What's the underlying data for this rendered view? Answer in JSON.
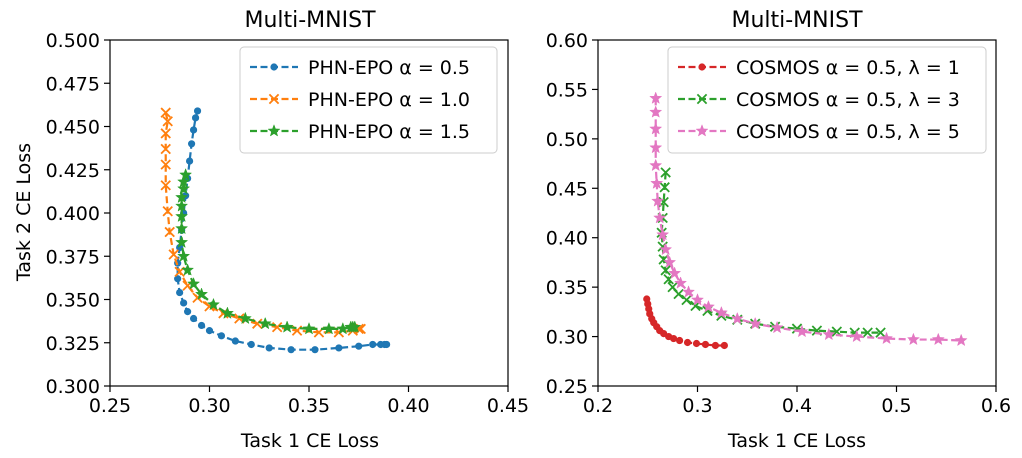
{
  "chart_data": [
    {
      "type": "line",
      "title": "Multi-MNIST",
      "xlabel": "Task 1 CE Loss",
      "ylabel": "Task 2 CE Loss",
      "xlim": [
        0.25,
        0.45
      ],
      "ylim": [
        0.3,
        0.5
      ],
      "xticks": [
        "0.25",
        "0.30",
        "0.35",
        "0.40",
        "0.45"
      ],
      "yticks": [
        "0.300",
        "0.325",
        "0.350",
        "0.375",
        "0.400",
        "0.425",
        "0.450",
        "0.475",
        "0.500"
      ],
      "grid": false,
      "legend_position": "top-right",
      "series": [
        {
          "name": "PHN-EPO α = 0.5",
          "color": "#1f77b4",
          "marker": "dot",
          "x": [
            0.294,
            0.293,
            0.292,
            0.291,
            0.29,
            0.289,
            0.288,
            0.287,
            0.286,
            0.285,
            0.284,
            0.284,
            0.285,
            0.287,
            0.289,
            0.292,
            0.296,
            0.3,
            0.306,
            0.313,
            0.321,
            0.33,
            0.341,
            0.353,
            0.365,
            0.375,
            0.382,
            0.386,
            0.388,
            0.389
          ],
          "y": [
            0.459,
            0.455,
            0.448,
            0.44,
            0.43,
            0.42,
            0.41,
            0.4,
            0.39,
            0.38,
            0.371,
            0.362,
            0.354,
            0.348,
            0.343,
            0.339,
            0.335,
            0.332,
            0.329,
            0.326,
            0.324,
            0.322,
            0.321,
            0.321,
            0.322,
            0.323,
            0.324,
            0.324,
            0.324,
            0.324
          ]
        },
        {
          "name": "PHN-EPO α = 1.0",
          "color": "#ff7f0e",
          "marker": "x",
          "x": [
            0.278,
            0.279,
            0.278,
            0.278,
            0.278,
            0.278,
            0.279,
            0.28,
            0.282,
            0.285,
            0.289,
            0.294,
            0.3,
            0.307,
            0.315,
            0.324,
            0.334,
            0.344,
            0.355,
            0.365,
            0.372,
            0.375,
            0.376
          ],
          "y": [
            0.458,
            0.453,
            0.446,
            0.437,
            0.428,
            0.416,
            0.401,
            0.389,
            0.376,
            0.366,
            0.358,
            0.351,
            0.346,
            0.342,
            0.339,
            0.336,
            0.334,
            0.332,
            0.331,
            0.331,
            0.332,
            0.333,
            0.333
          ]
        },
        {
          "name": "PHN-EPO α = 1.5",
          "color": "#2ca02c",
          "marker": "star",
          "x": [
            0.288,
            0.287,
            0.287,
            0.286,
            0.286,
            0.286,
            0.286,
            0.286,
            0.287,
            0.289,
            0.292,
            0.296,
            0.302,
            0.309,
            0.318,
            0.328,
            0.339,
            0.35,
            0.36,
            0.367,
            0.371,
            0.372,
            0.373
          ],
          "y": [
            0.422,
            0.418,
            0.414,
            0.409,
            0.404,
            0.398,
            0.391,
            0.383,
            0.375,
            0.367,
            0.359,
            0.353,
            0.347,
            0.342,
            0.339,
            0.336,
            0.334,
            0.333,
            0.333,
            0.333,
            0.334,
            0.334,
            0.334
          ]
        }
      ]
    },
    {
      "type": "line",
      "title": "Multi-MNIST",
      "xlabel": "Task 1 CE Loss",
      "ylabel": "",
      "xlim": [
        0.2,
        0.6
      ],
      "ylim": [
        0.25,
        0.6
      ],
      "xticks": [
        "0.2",
        "0.3",
        "0.4",
        "0.5",
        "0.6"
      ],
      "yticks": [
        "0.25",
        "0.30",
        "0.35",
        "0.40",
        "0.45",
        "0.50",
        "0.55",
        "0.60"
      ],
      "grid": false,
      "legend_position": "top-right",
      "series": [
        {
          "name": "COSMOS α = 0.5, λ = 1",
          "color": "#d62728",
          "marker": "dot",
          "x": [
            0.249,
            0.25,
            0.251,
            0.252,
            0.254,
            0.256,
            0.259,
            0.262,
            0.266,
            0.271,
            0.276,
            0.282,
            0.29,
            0.299,
            0.308,
            0.318,
            0.327
          ],
          "y": [
            0.338,
            0.333,
            0.328,
            0.323,
            0.318,
            0.314,
            0.31,
            0.306,
            0.303,
            0.3,
            0.298,
            0.296,
            0.294,
            0.293,
            0.292,
            0.291,
            0.291
          ]
        },
        {
          "name": "COSMOS α = 0.5, λ = 3",
          "color": "#2ca02c",
          "marker": "x",
          "x": [
            0.268,
            0.267,
            0.266,
            0.265,
            0.264,
            0.265,
            0.266,
            0.268,
            0.271,
            0.275,
            0.281,
            0.289,
            0.298,
            0.31,
            0.324,
            0.34,
            0.358,
            0.378,
            0.4,
            0.42,
            0.44,
            0.458,
            0.471,
            0.484
          ],
          "y": [
            0.466,
            0.451,
            0.436,
            0.42,
            0.405,
            0.391,
            0.378,
            0.367,
            0.358,
            0.35,
            0.343,
            0.337,
            0.331,
            0.326,
            0.321,
            0.317,
            0.313,
            0.31,
            0.308,
            0.306,
            0.305,
            0.304,
            0.304,
            0.304
          ]
        },
        {
          "name": "COSMOS α = 0.5, λ = 5",
          "color": "#e377c2",
          "marker": "star",
          "x": [
            0.258,
            0.258,
            0.258,
            0.258,
            0.258,
            0.259,
            0.26,
            0.262,
            0.265,
            0.268,
            0.272,
            0.277,
            0.283,
            0.291,
            0.3,
            0.311,
            0.324,
            0.34,
            0.358,
            0.38,
            0.405,
            0.432,
            0.46,
            0.49,
            0.517,
            0.542,
            0.565
          ],
          "y": [
            0.541,
            0.527,
            0.51,
            0.491,
            0.473,
            0.455,
            0.437,
            0.42,
            0.403,
            0.388,
            0.375,
            0.364,
            0.354,
            0.345,
            0.337,
            0.33,
            0.324,
            0.318,
            0.313,
            0.309,
            0.305,
            0.302,
            0.3,
            0.298,
            0.297,
            0.297,
            0.296
          ]
        }
      ]
    }
  ]
}
